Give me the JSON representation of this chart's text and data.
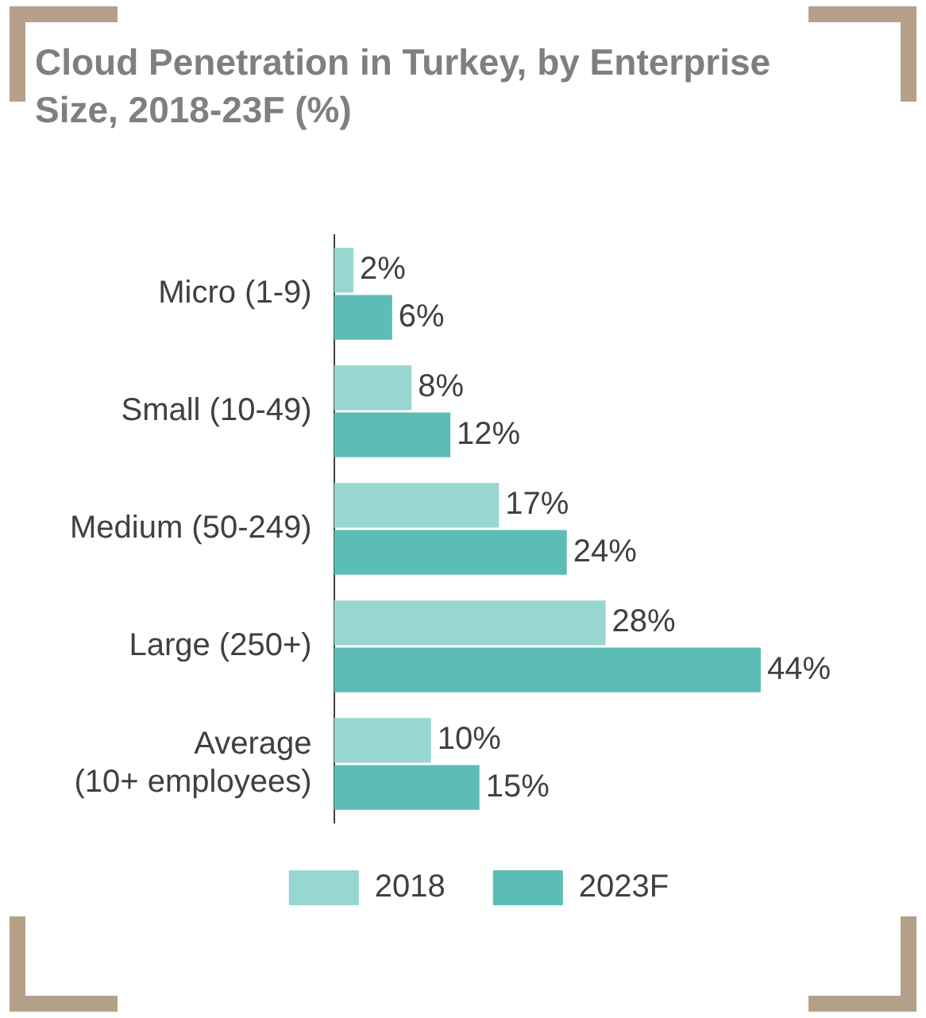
{
  "chart_data": {
    "type": "bar",
    "orientation": "horizontal",
    "title": "Cloud Penetration in Turkey, by Enterprise Size, 2018-23F (%)",
    "categories": [
      "Micro (1-9)",
      "Small (10-49)",
      "Medium (50-249)",
      "Large (250+)",
      "Average (10+ employees)"
    ],
    "series": [
      {
        "name": "2018",
        "color": "#97d6d1",
        "values": [
          2,
          8,
          17,
          28,
          10
        ],
        "value_labels": [
          "2%",
          "8%",
          "17%",
          "28%",
          "10%"
        ]
      },
      {
        "name": "2023F",
        "color": "#5cbdb6",
        "values": [
          6,
          12,
          24,
          44,
          15
        ],
        "value_labels": [
          "6%",
          "12%",
          "24%",
          "44%",
          "15%"
        ]
      }
    ],
    "legend": "bottom"
  }
}
